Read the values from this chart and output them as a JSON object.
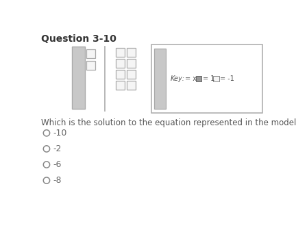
{
  "title": "Question 3-10",
  "question": "Which is the solution to the equation represented in the model?",
  "choices": [
    "-10",
    "-2",
    "-6",
    "-8"
  ],
  "bg_color": "#ffffff",
  "bar_color_gray": "#c8c8c8",
  "bar_stroke": "#aaaaaa",
  "sq_fill": "#f5f5f5",
  "sq_stroke": "#aaaaaa",
  "key_dark_sq": "#999999",
  "key_light_sq": "#f5f5f5",
  "title_color": "#333333",
  "text_color": "#555555",
  "choice_color": "#666666"
}
